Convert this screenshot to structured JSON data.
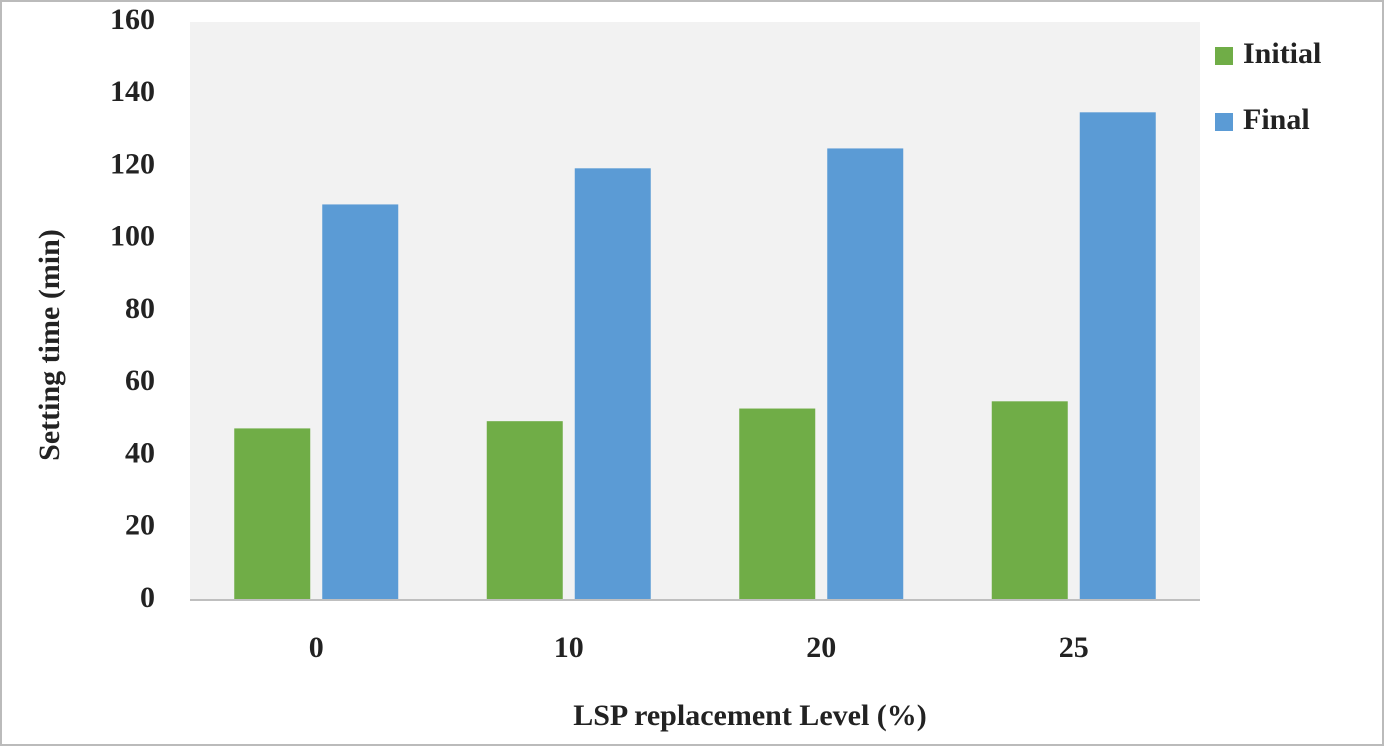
{
  "chart_data": {
    "type": "bar",
    "xlabel": "LSP replacement Level (%)",
    "ylabel": "Setting time (min)",
    "categories": [
      "0",
      "10",
      "20",
      "25"
    ],
    "series": [
      {
        "name": "Initial",
        "color": "#70ad47",
        "values": [
          47.5,
          49.5,
          53,
          55
        ]
      },
      {
        "name": "Final",
        "color": "#5b9bd5",
        "values": [
          109.5,
          119.5,
          125,
          135
        ]
      }
    ],
    "ylim": [
      0,
      160
    ],
    "yticks": [
      0,
      20,
      40,
      60,
      80,
      100,
      120,
      140,
      160
    ],
    "grid": false,
    "legend": "top-right"
  }
}
